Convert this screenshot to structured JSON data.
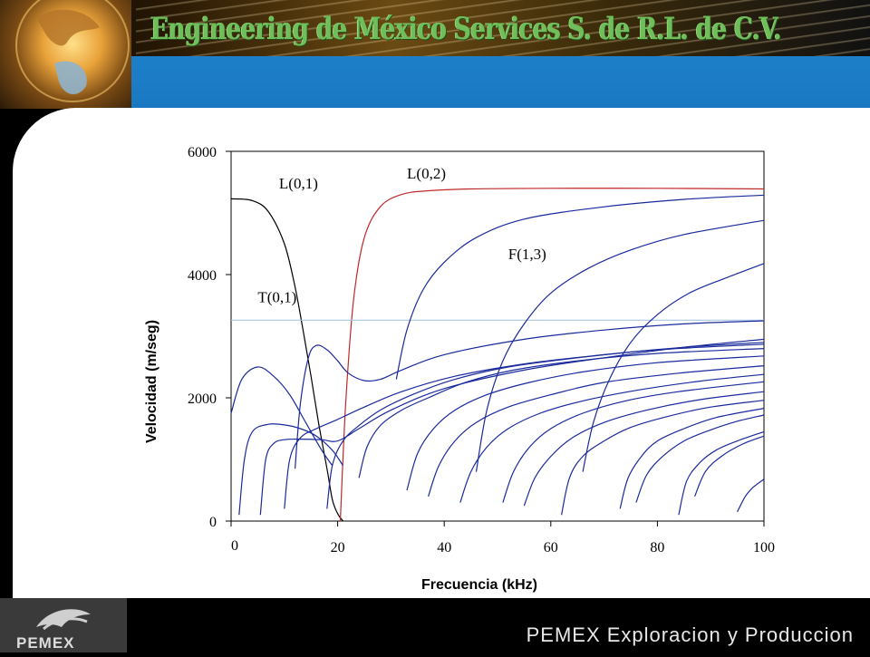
{
  "header": {
    "title": "Engineering de México Services S. de R.L. de C.V."
  },
  "footer": {
    "logo_text": "PEMEX",
    "company": "PEMEX Exploracion y Produccion"
  },
  "colors": {
    "header_blue": "#1a78c2",
    "curve_blue": "#1a2a9c",
    "curve_red": "#c0282a",
    "curve_black": "#000000",
    "reference_line": "#a9c6e0"
  },
  "chart_data": {
    "type": "line",
    "xlabel": "Frecuencia (kHz)",
    "ylabel": "Velocidad (m/seg)",
    "xlim": [
      0,
      100
    ],
    "ylim": [
      0,
      6000
    ],
    "x_ticks": [
      "0",
      "20",
      "40",
      "60",
      "80",
      "100"
    ],
    "y_ticks": [
      "0",
      "2000",
      "4000",
      "6000"
    ],
    "grid": false,
    "annotations": [
      {
        "text": "L(0,1)",
        "x": 9,
        "y": 5400
      },
      {
        "text": "L(0,2)",
        "x": 33,
        "y": 5560
      },
      {
        "text": "F(1,3)",
        "x": 52,
        "y": 4250
      },
      {
        "text": "T(0,1)",
        "x": 5,
        "y": 3550
      }
    ],
    "series": [
      {
        "name": "L(0,1)",
        "color": "#000000",
        "x": [
          0,
          4,
          7,
          10,
          12,
          13.5,
          15,
          16.5,
          18,
          19,
          20,
          21
        ],
        "y": [
          5230,
          5200,
          5020,
          4500,
          3800,
          3100,
          2350,
          1550,
          850,
          350,
          120,
          0
        ]
      },
      {
        "name": "L(0,2)",
        "color": "#c0282a",
        "x": [
          20.5,
          21.5,
          23,
          25,
          28,
          32,
          37,
          45,
          60,
          80,
          100
        ],
        "y": [
          0,
          1900,
          3600,
          4600,
          5100,
          5300,
          5360,
          5390,
          5400,
          5400,
          5390
        ]
      },
      {
        "name": "T(0,1)",
        "color": "#a9c6e0",
        "x": [
          0,
          100
        ],
        "y": [
          3260,
          3260
        ]
      },
      {
        "name": "",
        "color": "#1a2a9c",
        "x": [
          31,
          33,
          36,
          40,
          46,
          55,
          70,
          85,
          100
        ],
        "y": [
          2300,
          3100,
          3750,
          4200,
          4600,
          4900,
          5100,
          5220,
          5290
        ]
      },
      {
        "name": "",
        "color": "#1a2a9c",
        "x": [
          46,
          48,
          51,
          55,
          60,
          67,
          75,
          85,
          100
        ],
        "y": [
          800,
          1800,
          2600,
          3200,
          3700,
          4100,
          4400,
          4650,
          4880
        ]
      },
      {
        "name": "",
        "color": "#1a2a9c",
        "x": [
          66,
          68,
          71,
          75,
          80,
          86,
          93,
          100
        ],
        "y": [
          800,
          1600,
          2300,
          2900,
          3350,
          3700,
          3950,
          4180
        ]
      },
      {
        "name": "",
        "color": "#1a2a9c",
        "x": [
          0,
          2,
          5,
          8,
          11,
          14,
          17,
          19
        ],
        "y": [
          1750,
          2300,
          2500,
          2350,
          2050,
          1600,
          1150,
          900
        ]
      },
      {
        "name": "",
        "color": "#1a2a9c",
        "x": [
          12,
          13,
          14.5,
          16,
          18,
          20,
          22,
          25,
          28,
          32,
          40,
          55,
          70,
          85,
          100
        ],
        "y": [
          850,
          1900,
          2650,
          2850,
          2780,
          2600,
          2400,
          2280,
          2300,
          2450,
          2700,
          2950,
          3100,
          3200,
          3250
        ]
      },
      {
        "name": "",
        "color": "#1a2a9c",
        "x": [
          1.5,
          2.5,
          4,
          7,
          10,
          13,
          16,
          19,
          21
        ],
        "y": [
          100,
          1000,
          1450,
          1570,
          1560,
          1500,
          1380,
          1150,
          900
        ]
      },
      {
        "name": "",
        "color": "#1a2a9c",
        "x": [
          5.5,
          6.5,
          8,
          10,
          13,
          17,
          20,
          24,
          30,
          40,
          55,
          70,
          85,
          100
        ],
        "y": [
          100,
          1000,
          1260,
          1320,
          1330,
          1320,
          1300,
          1500,
          1800,
          2150,
          2450,
          2650,
          2820,
          2950
        ]
      },
      {
        "name": "",
        "color": "#1a2a9c",
        "x": [
          10,
          11,
          13,
          16,
          20,
          25,
          32,
          42,
          55,
          70,
          85,
          100
        ],
        "y": [
          200,
          1000,
          1350,
          1500,
          1650,
          1850,
          2100,
          2350,
          2550,
          2700,
          2820,
          2900
        ]
      },
      {
        "name": "",
        "color": "#1a2a9c",
        "x": [
          18,
          19,
          21,
          24,
          28,
          34,
          42,
          52,
          65,
          80,
          100
        ],
        "y": [
          200,
          900,
          1300,
          1550,
          1800,
          2050,
          2300,
          2500,
          2650,
          2780,
          2870
        ]
      },
      {
        "name": "",
        "color": "#1a2a9c",
        "x": [
          24,
          25.5,
          28,
          32,
          37,
          44,
          53,
          65,
          80,
          100
        ],
        "y": [
          700,
          1200,
          1550,
          1800,
          2000,
          2250,
          2450,
          2600,
          2720,
          2800
        ]
      },
      {
        "name": "",
        "color": "#1a2a9c",
        "x": [
          33,
          35,
          38,
          42,
          48,
          56,
          66,
          80,
          100
        ],
        "y": [
          500,
          1100,
          1500,
          1800,
          2050,
          2250,
          2420,
          2570,
          2680
        ]
      },
      {
        "name": "",
        "color": "#1a2a9c",
        "x": [
          37,
          39,
          42,
          46,
          52,
          60,
          70,
          84,
          100
        ],
        "y": [
          400,
          900,
          1300,
          1600,
          1850,
          2050,
          2250,
          2400,
          2520
        ]
      },
      {
        "name": "",
        "color": "#1a2a9c",
        "x": [
          43,
          45,
          48,
          52,
          58,
          66,
          76,
          88,
          100
        ],
        "y": [
          300,
          800,
          1200,
          1500,
          1750,
          1950,
          2120,
          2270,
          2380
        ]
      },
      {
        "name": "",
        "color": "#1a2a9c",
        "x": [
          51,
          53,
          56,
          60,
          66,
          74,
          84,
          100
        ],
        "y": [
          300,
          800,
          1200,
          1500,
          1750,
          1950,
          2100,
          2260
        ]
      },
      {
        "name": "",
        "color": "#1a2a9c",
        "x": [
          55,
          57,
          60,
          64,
          70,
          78,
          88,
          100
        ],
        "y": [
          250,
          700,
          1050,
          1350,
          1600,
          1800,
          1970,
          2100
        ]
      },
      {
        "name": "",
        "color": "#1a2a9c",
        "x": [
          62,
          63.5,
          66,
          70,
          75,
          82,
          90,
          100
        ],
        "y": [
          100,
          700,
          1050,
          1300,
          1520,
          1700,
          1850,
          1960
        ]
      },
      {
        "name": "",
        "color": "#1a2a9c",
        "x": [
          73,
          74.5,
          77,
          80,
          85,
          91,
          100
        ],
        "y": [
          200,
          700,
          1050,
          1300,
          1500,
          1680,
          1830
        ]
      },
      {
        "name": "",
        "color": "#1a2a9c",
        "x": [
          76,
          78,
          81,
          85,
          90,
          95,
          100
        ],
        "y": [
          300,
          750,
          1050,
          1300,
          1480,
          1620,
          1720
        ]
      },
      {
        "name": "",
        "color": "#1a2a9c",
        "x": [
          84,
          85.5,
          88,
          91,
          95,
          100
        ],
        "y": [
          100,
          650,
          950,
          1150,
          1300,
          1450
        ]
      },
      {
        "name": "",
        "color": "#1a2a9c",
        "x": [
          87,
          89,
          92,
          96,
          100
        ],
        "y": [
          400,
          800,
          1050,
          1250,
          1380
        ]
      },
      {
        "name": "",
        "color": "#1a2a9c",
        "x": [
          95,
          96.5,
          98,
          100
        ],
        "y": [
          150,
          400,
          550,
          680
        ]
      }
    ]
  }
}
